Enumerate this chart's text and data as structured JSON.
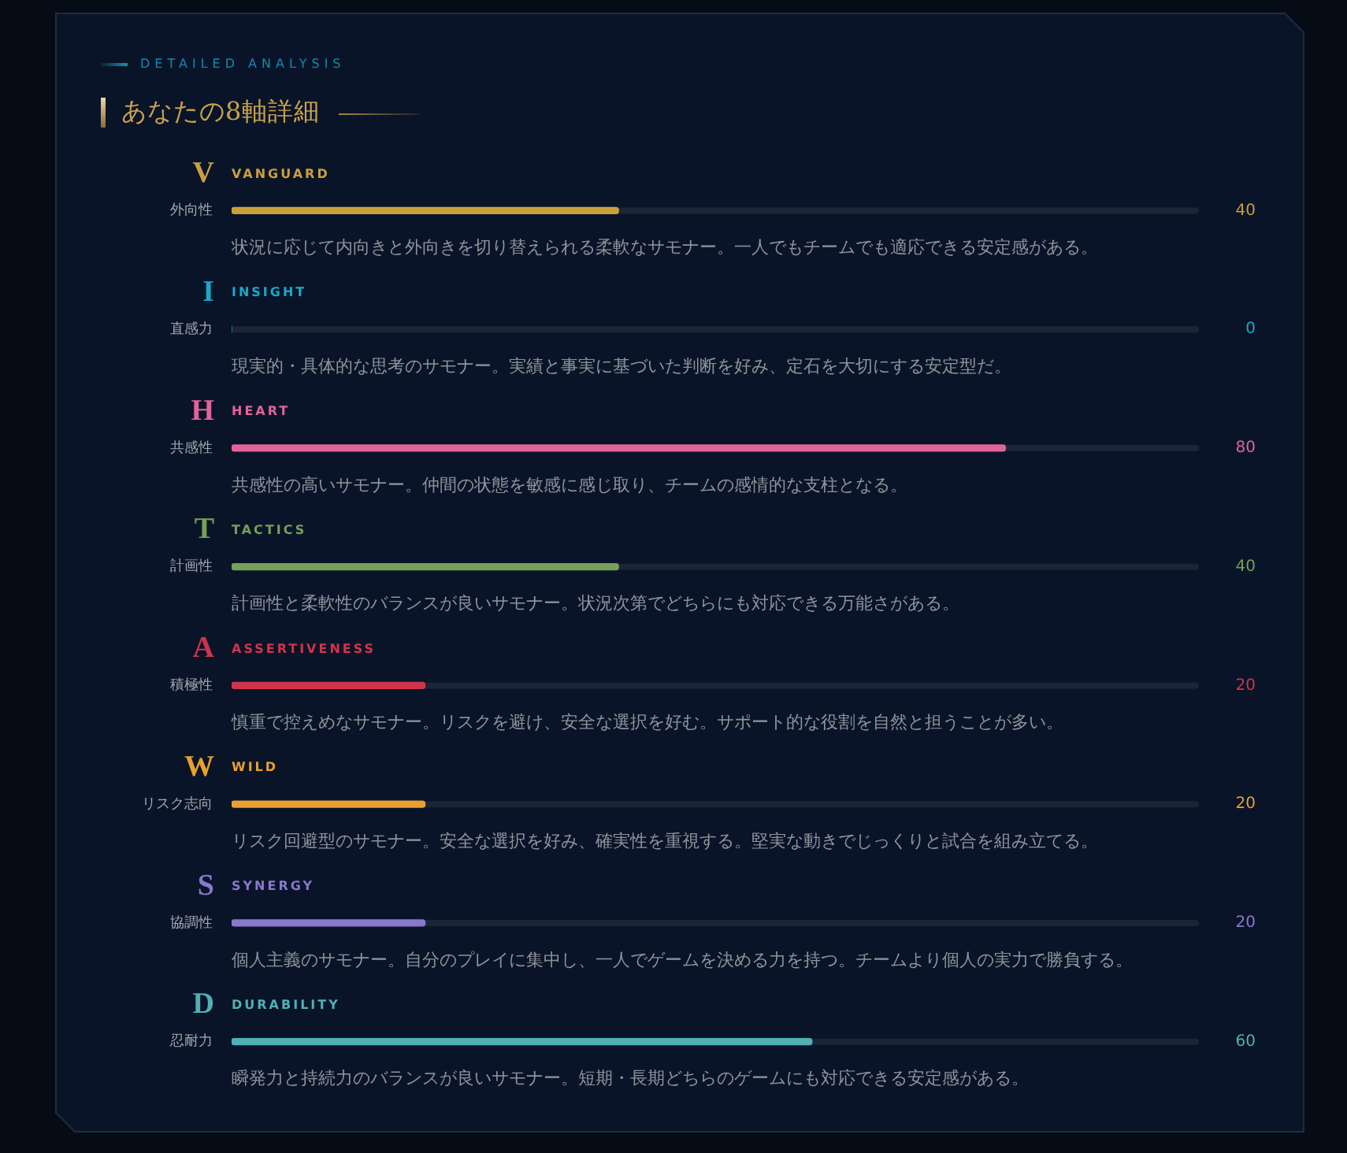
{
  "chart_data": {
    "type": "bar",
    "orientation": "horizontal",
    "subtitle": "DETAILED ANALYSIS",
    "title": "あなたの8軸詳細",
    "categories": [
      "外向性",
      "直感力",
      "共感性",
      "計画性",
      "積極性",
      "リスク志向",
      "協調性",
      "忍耐力"
    ],
    "values": [
      40,
      0,
      80,
      40,
      20,
      20,
      20,
      60
    ],
    "colors": [
      "#c9a03c",
      "#1aa8c8",
      "#e0649a",
      "#78a05a",
      "#d0344c",
      "#e8a030",
      "#8a78cc",
      "#50b0b4"
    ],
    "xlim": [
      0,
      100
    ],
    "tick_labels": "y",
    "data_labels": true,
    "annotations": [
      "V",
      "VANGUARD",
      "状況に応じて内向きと外向きを切り替えられる柔軟なサモナー。一人でもチームでも適応できる安定感がある。",
      "I",
      "INSIGHT",
      "現実的・具体的な思考のサモナー。実績と事実に基づいた判断を好み、定石を大切にする安定型だ。",
      "H",
      "HEART",
      "共感性の高いサモナー。仲間の状態を敏感に感じ取り、チームの感情的な支柱となる。",
      "T",
      "TACTICS",
      "計画性と柔軟性のバランスが良いサモナー。状況次第でどちらにも対応できる万能さがある。",
      "A",
      "ASSERTIVENESS",
      "慎重で控えめなサモナー。リスクを避け、安全な選択を好む。サポート的な役割を自然と担うことが多い。",
      "W",
      "WILD",
      "リスク回避型のサモナー。安全な選択を好み、確実性を重視する。堅実な動きでじっくりと試合を組み立てる。",
      "S",
      "SYNERGY",
      "個人主義のサモナー。自分のプレイに集中し、一人でゲームを決める力を持つ。チームより個人の実力で勝負する。",
      "D",
      "DURABILITY",
      "瞬発力と持続力のバランスが良いサモナー。短期・長期どちらのゲームにも対応できる安定感がある。"
    ]
  }
}
